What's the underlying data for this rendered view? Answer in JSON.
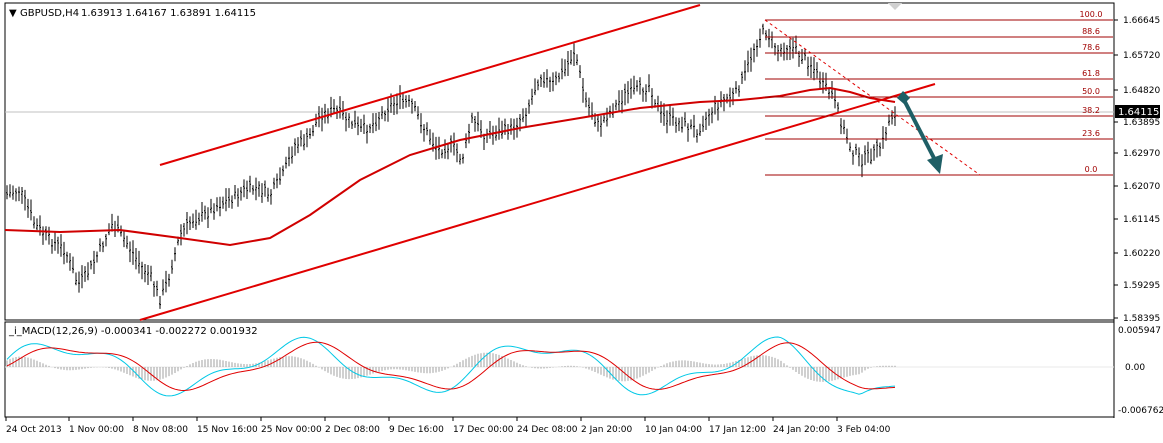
{
  "header": {
    "symbol_label": "GBPUSD,H4",
    "ohlc_label": "1.63913 1.64167 1.63891 1.64115",
    "menu_glyph": "▼"
  },
  "price_axis": {
    "ticks": [
      "1.66645",
      "1.65720",
      "1.64820",
      "1.63895",
      "1.62970",
      "1.62070",
      "1.61145",
      "1.60220",
      "1.59295",
      "1.58395"
    ],
    "current_price": "1.64115"
  },
  "fibonacci": {
    "levels": [
      "100.0",
      "88.6",
      "78.6",
      "61.8",
      "50.0",
      "38.2",
      "23.6",
      "0.0"
    ]
  },
  "macd": {
    "label": "_i_MACD(12,26,9) -0.000341 -0.002272 0.001932",
    "axis_ticks": [
      "0.005947",
      "0.00",
      "-0.006762"
    ]
  },
  "time_axis": {
    "labels": [
      "24 Oct 2013",
      "1 Nov 00:00",
      "8 Nov 08:00",
      "15 Nov 16:00",
      "25 Nov 00:00",
      "2 Dec 08:00",
      "9 Dec 16:00",
      "17 Dec 00:00",
      "24 Dec 08:00",
      "2 Jan 20:00",
      "10 Jan 04:00",
      "17 Jan 12:00",
      "24 Jan 20:00",
      "3 Feb 04:00"
    ]
  },
  "colors": {
    "channel": "#e00000",
    "moving_average": "#d00000",
    "fib": "#a00000",
    "projection_arrow": "#1f5f66",
    "bars": "#000000",
    "macd_line": "#00c8e6",
    "signal_line": "#e00000",
    "histogram": "#a0a0a0",
    "current_price_bg": "#000000"
  },
  "icons": {
    "menu": "triangle-down-icon",
    "arrow": "projection-arrow-icon"
  }
}
